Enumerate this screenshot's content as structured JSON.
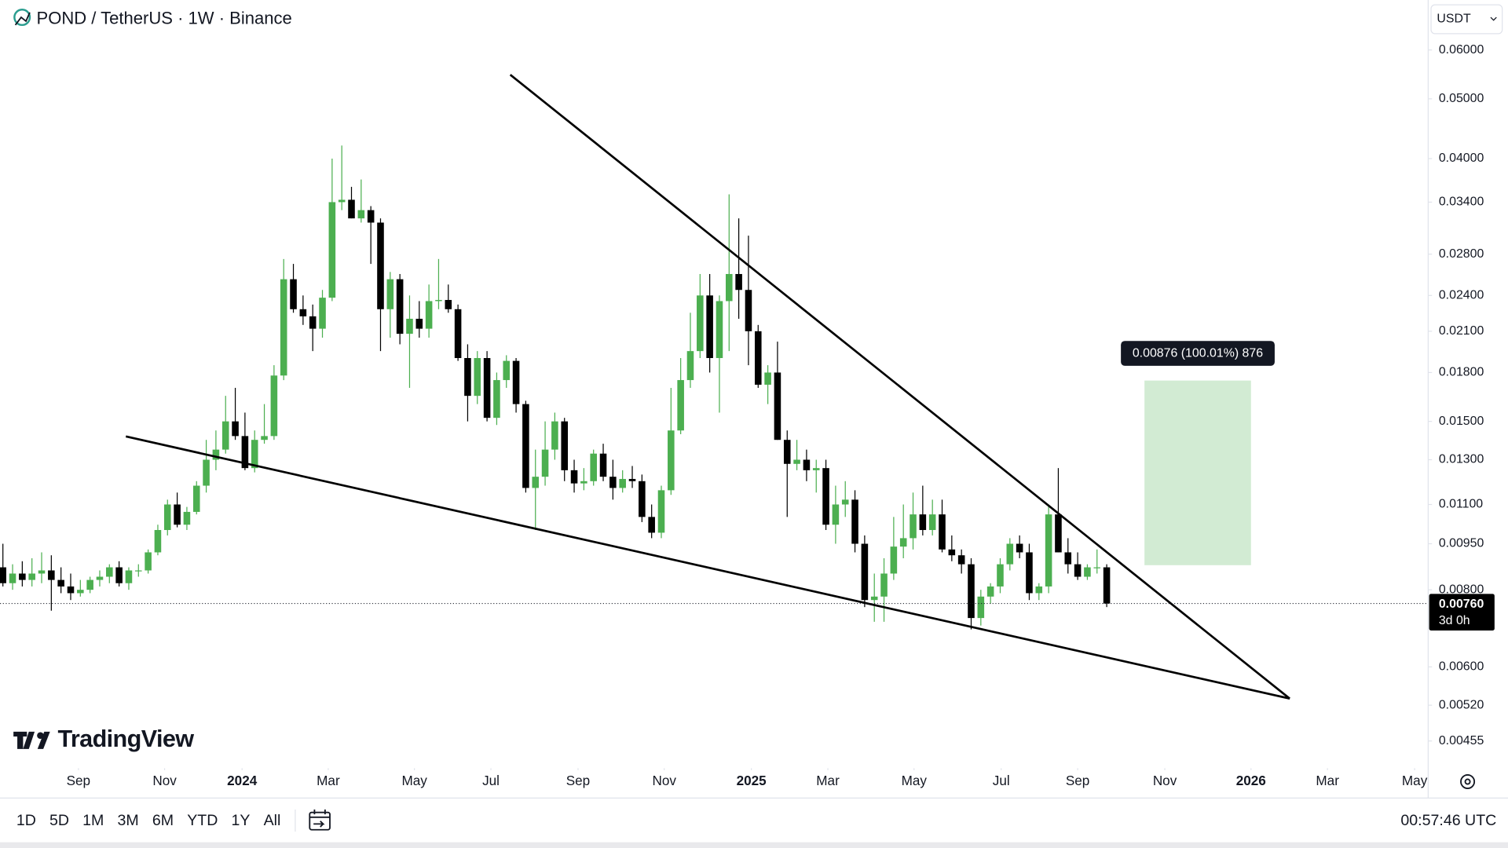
{
  "chart_data": {
    "type": "candlestick",
    "title": "POND / TetherUS · 1W · Binance",
    "currency": "USDT",
    "brand": "TradingView",
    "log_scale": true,
    "up_color": "#4caf50",
    "down_color": "#000000",
    "candles": {
      "open": [
        0.0087,
        0.0082,
        0.0085,
        0.0083,
        0.0085,
        0.0086,
        0.0083,
        0.0081,
        0.0079,
        0.008,
        0.0083,
        0.0084,
        0.0087,
        0.0082,
        0.0086,
        0.0086,
        0.0092,
        0.01,
        0.011,
        0.0102,
        0.0107,
        0.0118,
        0.013,
        0.0135,
        0.015,
        0.0142,
        0.0126,
        0.014,
        0.0142,
        0.0178,
        0.0255,
        0.0228,
        0.0222,
        0.0212,
        0.0238,
        0.034,
        0.0343,
        0.032,
        0.033,
        0.0315,
        0.0228,
        0.0255,
        0.0208,
        0.022,
        0.0212,
        0.0235,
        0.0236,
        0.0228,
        0.019,
        0.0165,
        0.019,
        0.0152,
        0.0175,
        0.0188,
        0.016,
        0.0117,
        0.0122,
        0.0135,
        0.015,
        0.0125,
        0.0119,
        0.012,
        0.0133,
        0.0122,
        0.0117,
        0.0121,
        0.012,
        0.0105,
        0.0099,
        0.0116,
        0.0145,
        0.0175,
        0.0195,
        0.024,
        0.019,
        0.0235,
        0.026,
        0.0245,
        0.021,
        0.0172,
        0.018,
        0.014,
        0.0128,
        0.013,
        0.0125,
        0.0126,
        0.0102,
        0.011,
        0.0112,
        0.0095,
        0.0077,
        0.0078,
        0.0085,
        0.0094,
        0.0097,
        0.0106,
        0.01,
        0.0106,
        0.0093,
        0.0091,
        0.0088,
        0.0072,
        0.0078,
        0.0081,
        0.0088,
        0.0095,
        0.0092,
        0.0079,
        0.0081,
        0.0106,
        0.0092,
        0.0088,
        0.0084,
        0.0087,
        0.0087
      ],
      "high": [
        0.0095,
        0.0088,
        0.0089,
        0.009,
        0.0092,
        0.0091,
        0.0087,
        0.0085,
        0.0083,
        0.0084,
        0.0086,
        0.0088,
        0.0089,
        0.0087,
        0.0088,
        0.0093,
        0.0102,
        0.0112,
        0.0115,
        0.0109,
        0.012,
        0.014,
        0.0145,
        0.0165,
        0.017,
        0.0155,
        0.0145,
        0.016,
        0.0185,
        0.0275,
        0.027,
        0.024,
        0.0232,
        0.0245,
        0.04,
        0.042,
        0.036,
        0.037,
        0.0335,
        0.032,
        0.0262,
        0.026,
        0.024,
        0.0235,
        0.025,
        0.0275,
        0.025,
        0.0232,
        0.02,
        0.0195,
        0.0195,
        0.018,
        0.0192,
        0.019,
        0.0162,
        0.0135,
        0.015,
        0.0155,
        0.0152,
        0.013,
        0.0126,
        0.0135,
        0.0138,
        0.013,
        0.0125,
        0.0127,
        0.0123,
        0.011,
        0.0118,
        0.017,
        0.019,
        0.0225,
        0.026,
        0.026,
        0.024,
        0.035,
        0.032,
        0.03,
        0.0215,
        0.0185,
        0.0202,
        0.0145,
        0.014,
        0.0135,
        0.013,
        0.013,
        0.0118,
        0.012,
        0.0116,
        0.0098,
        0.0085,
        0.009,
        0.0105,
        0.011,
        0.0115,
        0.0118,
        0.0112,
        0.0112,
        0.0098,
        0.0093,
        0.009,
        0.008,
        0.0082,
        0.009,
        0.0097,
        0.0098,
        0.0095,
        0.0082,
        0.011,
        0.0126,
        0.0097,
        0.0092,
        0.0088,
        0.0093,
        0.0088
      ],
      "low": [
        0.0081,
        0.008,
        0.0081,
        0.0081,
        0.0082,
        0.0074,
        0.0079,
        0.0077,
        0.0078,
        0.0079,
        0.0081,
        0.0082,
        0.0081,
        0.008,
        0.0084,
        0.0085,
        0.0091,
        0.0098,
        0.0101,
        0.01,
        0.0106,
        0.0115,
        0.0125,
        0.0133,
        0.014,
        0.0125,
        0.0124,
        0.0138,
        0.014,
        0.0175,
        0.0225,
        0.0215,
        0.0195,
        0.0205,
        0.0235,
        0.033,
        0.032,
        0.0315,
        0.027,
        0.0195,
        0.0205,
        0.02,
        0.017,
        0.0205,
        0.0205,
        0.0228,
        0.0225,
        0.0188,
        0.015,
        0.016,
        0.015,
        0.0148,
        0.017,
        0.0155,
        0.0115,
        0.01,
        0.0118,
        0.013,
        0.012,
        0.0115,
        0.0116,
        0.0118,
        0.012,
        0.0112,
        0.0115,
        0.0117,
        0.0103,
        0.0097,
        0.0097,
        0.0114,
        0.0143,
        0.017,
        0.019,
        0.018,
        0.0155,
        0.0195,
        0.022,
        0.0185,
        0.017,
        0.016,
        0.014,
        0.0105,
        0.0125,
        0.012,
        0.0115,
        0.01,
        0.0095,
        0.0105,
        0.0092,
        0.0075,
        0.0071,
        0.0071,
        0.0083,
        0.009,
        0.0093,
        0.0098,
        0.0098,
        0.0092,
        0.0089,
        0.0085,
        0.0069,
        0.007,
        0.0076,
        0.0079,
        0.0086,
        0.009,
        0.0077,
        0.0077,
        0.0079,
        0.0092,
        0.0085,
        0.0083,
        0.0083,
        0.0085,
        0.0075
      ],
      "close": [
        0.0082,
        0.0085,
        0.0083,
        0.0085,
        0.0086,
        0.0083,
        0.0081,
        0.0079,
        0.008,
        0.0083,
        0.0084,
        0.0087,
        0.0082,
        0.0086,
        0.0086,
        0.0092,
        0.01,
        0.011,
        0.0102,
        0.0107,
        0.0118,
        0.013,
        0.0135,
        0.015,
        0.0142,
        0.0126,
        0.014,
        0.0142,
        0.0178,
        0.0255,
        0.0228,
        0.0222,
        0.0212,
        0.0238,
        0.034,
        0.0343,
        0.032,
        0.033,
        0.0315,
        0.0228,
        0.0255,
        0.0208,
        0.022,
        0.0212,
        0.0235,
        0.0236,
        0.0228,
        0.019,
        0.0165,
        0.019,
        0.0152,
        0.0175,
        0.0188,
        0.016,
        0.0117,
        0.0122,
        0.0135,
        0.015,
        0.0125,
        0.0119,
        0.012,
        0.0133,
        0.0122,
        0.0117,
        0.0121,
        0.012,
        0.0105,
        0.0099,
        0.0116,
        0.0145,
        0.0175,
        0.0195,
        0.024,
        0.019,
        0.0235,
        0.026,
        0.0245,
        0.021,
        0.0172,
        0.018,
        0.014,
        0.0128,
        0.013,
        0.0125,
        0.0126,
        0.0102,
        0.011,
        0.0112,
        0.0095,
        0.0077,
        0.0078,
        0.0085,
        0.0094,
        0.0097,
        0.0106,
        0.01,
        0.0106,
        0.0093,
        0.0091,
        0.0088,
        0.0072,
        0.0078,
        0.0081,
        0.0088,
        0.0095,
        0.0092,
        0.0079,
        0.0081,
        0.0106,
        0.0092,
        0.0088,
        0.0084,
        0.0087,
        0.0087,
        0.0076
      ]
    },
    "xlim": [
      -0.3,
      147.2
    ],
    "xticks": [
      {
        "value": 7.8,
        "label": "Sep"
      },
      {
        "value": 16.7,
        "label": "Nov"
      },
      {
        "value": 24.7,
        "label": "2024"
      },
      {
        "value": 33.6,
        "label": "Mar"
      },
      {
        "value": 42.5,
        "label": "May"
      },
      {
        "value": 50.4,
        "label": "Jul"
      },
      {
        "value": 59.4,
        "label": "Sep"
      },
      {
        "value": 68.3,
        "label": "Nov"
      },
      {
        "value": 77.3,
        "label": "2025"
      },
      {
        "value": 85.2,
        "label": "Mar"
      },
      {
        "value": 94.1,
        "label": "May"
      },
      {
        "value": 103.1,
        "label": "Jul"
      },
      {
        "value": 111,
        "label": "Sep"
      },
      {
        "value": 120,
        "label": "Nov"
      },
      {
        "value": 128.9,
        "label": "2026"
      },
      {
        "value": 136.8,
        "label": "Mar"
      },
      {
        "value": 145.8,
        "label": "May"
      }
    ],
    "ylim": [
      0.00417,
      0.0723
    ],
    "yticks": [
      {
        "value": 0.06,
        "label": "0.06000"
      },
      {
        "value": 0.05,
        "label": "0.05000"
      },
      {
        "value": 0.04,
        "label": "0.04000"
      },
      {
        "value": 0.034,
        "label": "0.03400"
      },
      {
        "value": 0.028,
        "label": "0.02800"
      },
      {
        "value": 0.024,
        "label": "0.02400"
      },
      {
        "value": 0.021,
        "label": "0.02100"
      },
      {
        "value": 0.018,
        "label": "0.01800"
      },
      {
        "value": 0.015,
        "label": "0.01500"
      },
      {
        "value": 0.013,
        "label": "0.01300"
      },
      {
        "value": 0.011,
        "label": "0.01100"
      },
      {
        "value": 0.0095,
        "label": "0.00950"
      },
      {
        "value": 0.008,
        "label": "0.00800"
      },
      {
        "value": 0.006,
        "label": "0.00600"
      },
      {
        "value": 0.0052,
        "label": "0.00520"
      },
      {
        "value": 0.00455,
        "label": "0.00455"
      }
    ],
    "last_price": {
      "value": 0.0076,
      "label": "0.00760"
    },
    "countdown": "3d 0h",
    "trendlines": [
      {
        "start": [
          52.4,
          0.0547
        ],
        "end": [
          132.9,
          0.00533
        ]
      },
      {
        "start": [
          12.7,
          0.01418
        ],
        "end": [
          132.9,
          0.00533
        ]
      }
    ],
    "measure": {
      "x": [
        117.9,
        128.9
      ],
      "y": [
        0.00877,
        0.01747
      ],
      "label": "0.00876 (100.01%) 876"
    },
    "ranges": [
      "1D",
      "5D",
      "1M",
      "3M",
      "6M",
      "YTD",
      "1Y",
      "All"
    ],
    "clock": "00:57:46 UTC"
  }
}
